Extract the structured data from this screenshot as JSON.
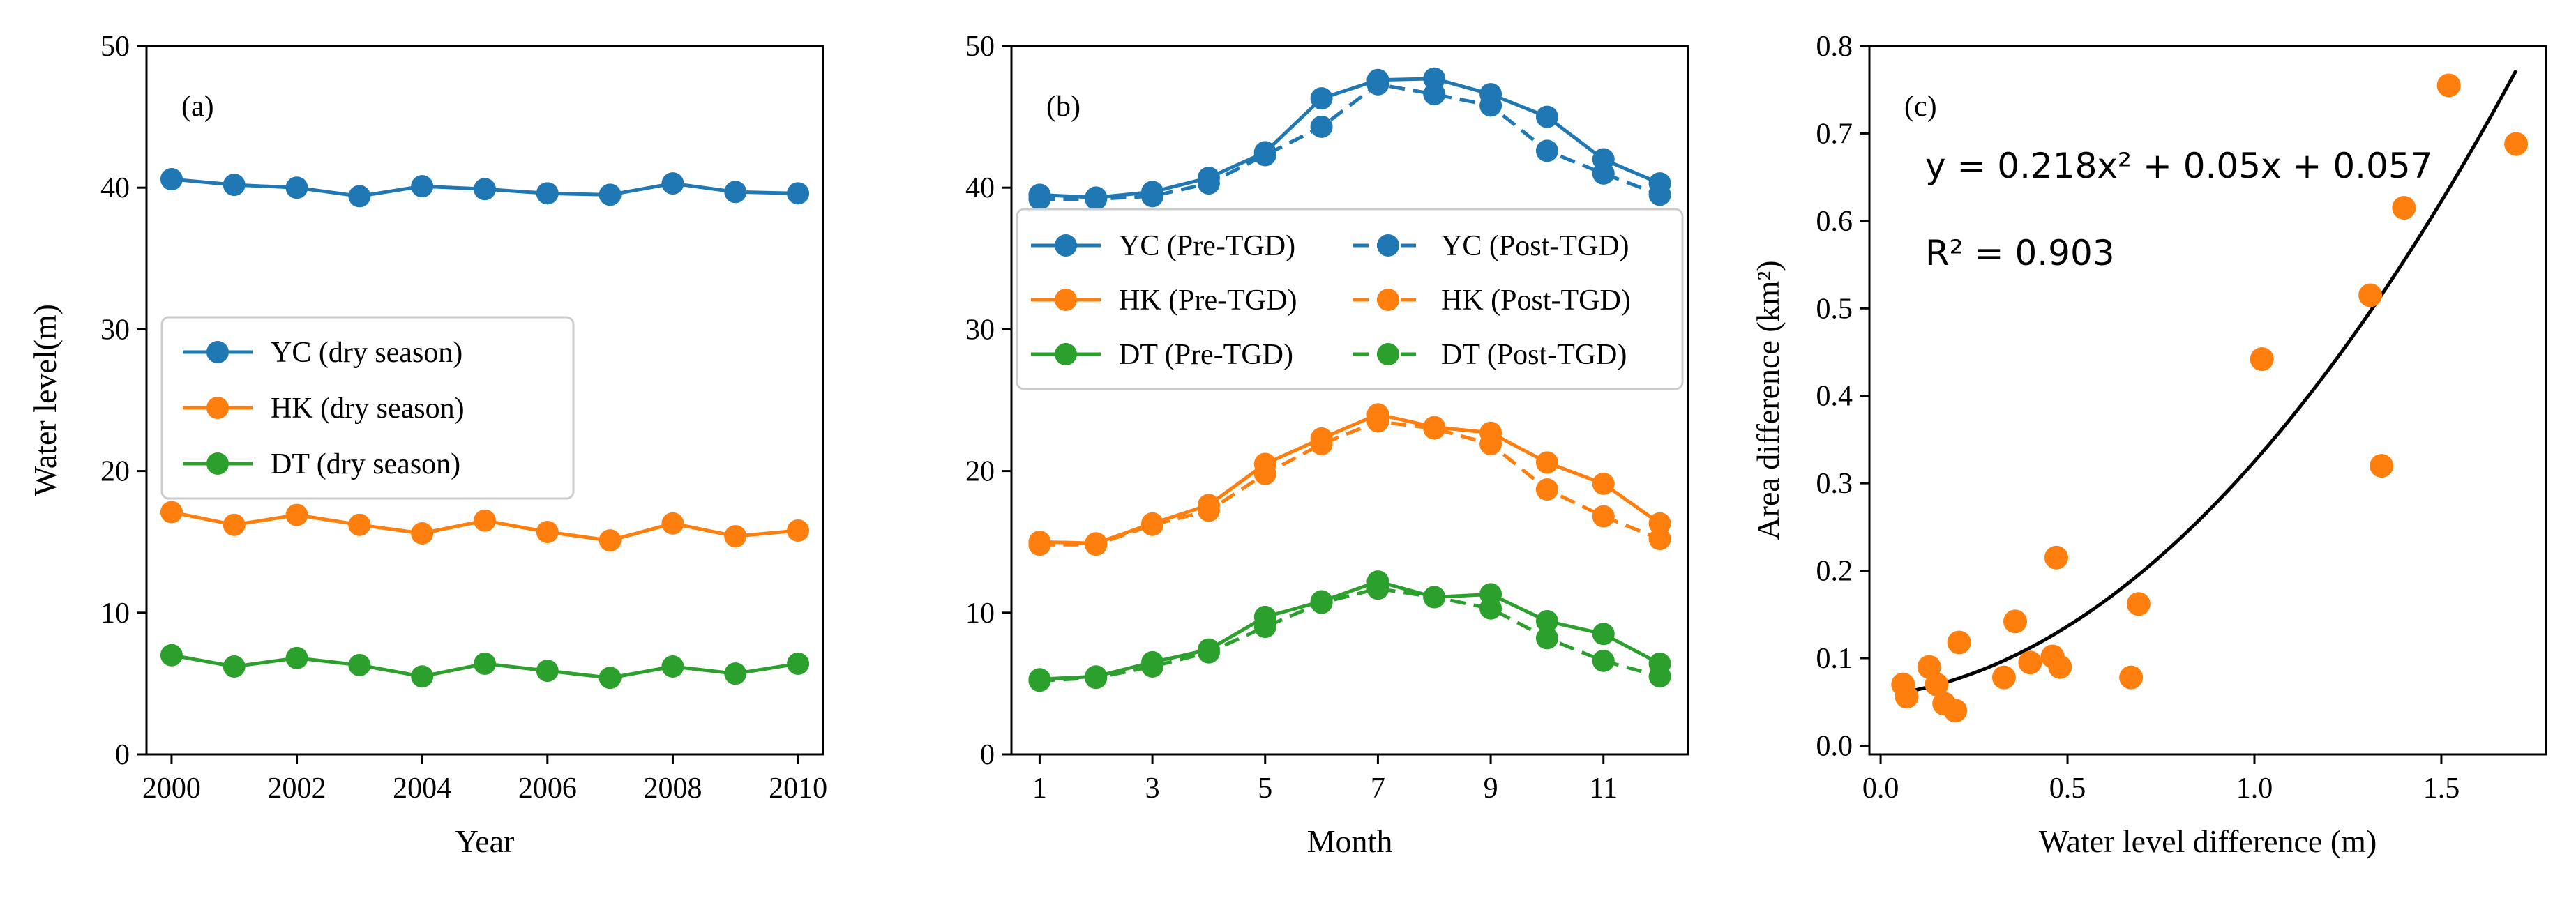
{
  "chart_data": [
    {
      "type": "line",
      "panel_label": "(a)",
      "xlabel": "Year",
      "ylabel": "Water level(m)",
      "xlim": [
        1999.6,
        2010.4
      ],
      "ylim": [
        0,
        50
      ],
      "xticks": [
        2000,
        2002,
        2004,
        2006,
        2008,
        2010
      ],
      "yticks": [
        0,
        10,
        20,
        30,
        40,
        50
      ],
      "legend_position": "center-left",
      "x": [
        2000,
        2001,
        2002,
        2003,
        2004,
        2005,
        2006,
        2007,
        2008,
        2009,
        2010
      ],
      "series": [
        {
          "name": "YC (dry season)",
          "color": "#1f77b4",
          "linestyle": "solid",
          "values": [
            40.6,
            40.2,
            40.0,
            39.4,
            40.1,
            39.9,
            39.6,
            39.5,
            40.3,
            39.7,
            39.6
          ]
        },
        {
          "name": "HK (dry season)",
          "color": "#ff7f0e",
          "linestyle": "solid",
          "values": [
            17.1,
            16.2,
            16.9,
            16.2,
            15.6,
            16.5,
            15.7,
            15.1,
            16.3,
            15.4,
            15.8
          ]
        },
        {
          "name": "DT (dry season)",
          "color": "#2ca02c",
          "linestyle": "solid",
          "values": [
            7.0,
            6.2,
            6.8,
            6.3,
            5.5,
            6.4,
            5.9,
            5.4,
            6.2,
            5.7,
            6.4
          ]
        }
      ]
    },
    {
      "type": "line",
      "panel_label": "(b)",
      "xlabel": "Month",
      "ylabel": "",
      "xlim": [
        0.5,
        12.5
      ],
      "ylim": [
        0,
        50
      ],
      "xticks": [
        1,
        3,
        5,
        7,
        9,
        11
      ],
      "yticks": [
        0,
        10,
        20,
        30,
        40,
        50
      ],
      "legend_position": "upper-center",
      "x": [
        1,
        2,
        3,
        4,
        5,
        6,
        7,
        8,
        9,
        10,
        11,
        12
      ],
      "series": [
        {
          "name": "YC (Pre-TGD)",
          "color": "#1f77b4",
          "linestyle": "solid",
          "values": [
            39.5,
            39.3,
            39.7,
            40.7,
            42.5,
            46.3,
            47.6,
            47.7,
            46.6,
            45.0,
            42.0,
            40.3
          ]
        },
        {
          "name": "YC (Post-TGD)",
          "color": "#1f77b4",
          "linestyle": "dashed",
          "values": [
            39.2,
            39.2,
            39.4,
            40.3,
            42.3,
            44.3,
            47.3,
            46.6,
            45.8,
            42.6,
            41.0,
            39.5
          ]
        },
        {
          "name": "HK (Pre-TGD)",
          "color": "#ff7f0e",
          "linestyle": "solid",
          "values": [
            15.0,
            14.9,
            16.3,
            17.6,
            20.5,
            22.3,
            24.0,
            23.1,
            22.7,
            20.6,
            19.1,
            16.3
          ]
        },
        {
          "name": "HK (Post-TGD)",
          "color": "#ff7f0e",
          "linestyle": "dashed",
          "values": [
            14.8,
            14.8,
            16.2,
            17.2,
            19.8,
            21.9,
            23.5,
            23.0,
            21.9,
            18.7,
            16.8,
            15.2
          ]
        },
        {
          "name": "DT (Pre-TGD)",
          "color": "#2ca02c",
          "linestyle": "solid",
          "values": [
            5.3,
            5.5,
            6.5,
            7.4,
            9.7,
            10.8,
            12.2,
            11.1,
            11.3,
            9.4,
            8.5,
            6.4
          ]
        },
        {
          "name": "DT (Post-TGD)",
          "color": "#2ca02c",
          "linestyle": "dashed",
          "values": [
            5.2,
            5.4,
            6.2,
            7.2,
            9.0,
            10.7,
            11.7,
            11.1,
            10.3,
            8.2,
            6.6,
            5.5
          ]
        }
      ]
    },
    {
      "type": "scatter",
      "panel_label": "(c)",
      "xlabel": "Water level difference (m)",
      "ylabel": "Area difference (km²)",
      "xlim": [
        -0.03,
        1.78
      ],
      "ylim": [
        -0.01,
        0.8
      ],
      "xticks": [
        0.0,
        0.5,
        1.0,
        1.5
      ],
      "xtick_labels": [
        "0.0",
        "0.5",
        "1.0",
        "1.5"
      ],
      "yticks": [
        0.0,
        0.1,
        0.2,
        0.3,
        0.4,
        0.5,
        0.6,
        0.7,
        0.8
      ],
      "ytick_labels": [
        "0.0",
        "0.1",
        "0.2",
        "0.3",
        "0.4",
        "0.5",
        "0.6",
        "0.7",
        "0.8"
      ],
      "point_color": "#ff7f0e",
      "fit_color": "#000000",
      "fit_coefficients": {
        "a": 0.218,
        "b": 0.05,
        "c": 0.057
      },
      "fit_range": [
        0.06,
        1.7
      ],
      "equation_text": "y = 0.218x² + 0.05x + 0.057",
      "r2_text": "R² = 0.903",
      "points": [
        [
          0.06,
          0.07
        ],
        [
          0.07,
          0.056
        ],
        [
          0.13,
          0.09
        ],
        [
          0.15,
          0.07
        ],
        [
          0.17,
          0.048
        ],
        [
          0.2,
          0.04
        ],
        [
          0.21,
          0.118
        ],
        [
          0.33,
          0.078
        ],
        [
          0.36,
          0.142
        ],
        [
          0.4,
          0.095
        ],
        [
          0.46,
          0.102
        ],
        [
          0.47,
          0.215
        ],
        [
          0.48,
          0.09
        ],
        [
          0.67,
          0.078
        ],
        [
          0.69,
          0.162
        ],
        [
          1.02,
          0.442
        ],
        [
          1.31,
          0.515
        ],
        [
          1.34,
          0.32
        ],
        [
          1.4,
          0.615
        ],
        [
          1.52,
          0.755
        ],
        [
          1.7,
          0.688
        ]
      ]
    }
  ]
}
